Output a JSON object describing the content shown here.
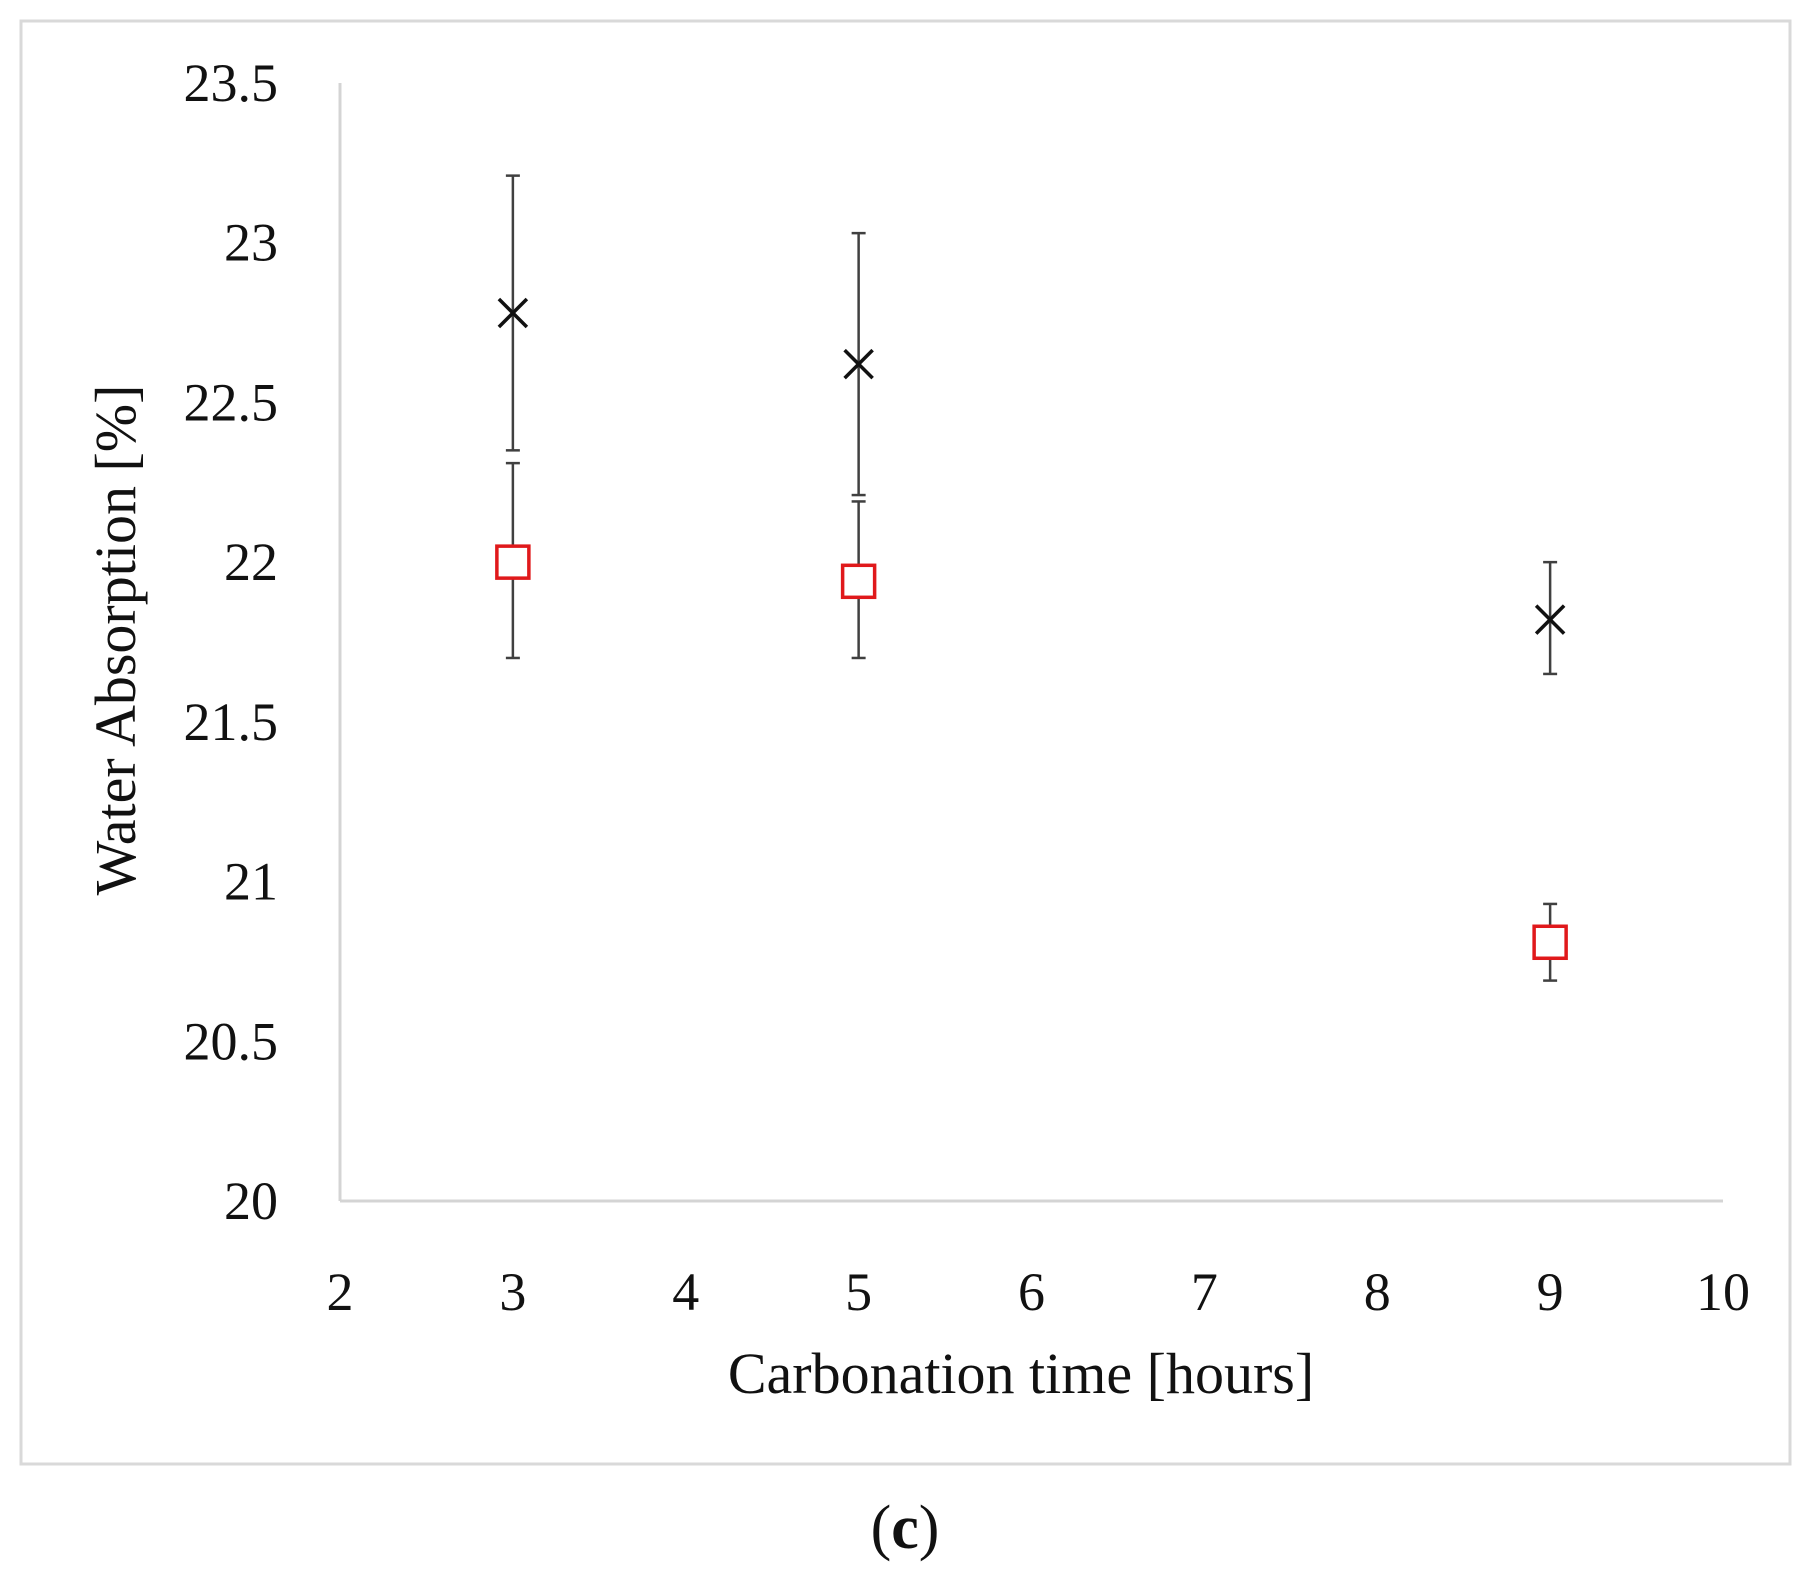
{
  "chart_data": {
    "type": "scatter",
    "title": "",
    "xlabel": "Carbonation  time [hours]",
    "ylabel": "Water Absorption [%]",
    "xlim": [
      2,
      10
    ],
    "ylim": [
      20,
      23.5
    ],
    "x_ticks": [
      2,
      3,
      4,
      5,
      6,
      7,
      8,
      9,
      10
    ],
    "x_tick_labels": [
      "2",
      "3",
      "4",
      "5",
      "6",
      "7",
      "8",
      "9",
      "10"
    ],
    "y_ticks": [
      20,
      20.5,
      21,
      21.5,
      22,
      22.5,
      23,
      23.5
    ],
    "y_tick_labels": [
      "20",
      "20.5",
      "21",
      "21.5",
      "22",
      "22.5",
      "23",
      "23.5"
    ],
    "grid": false,
    "series": [
      {
        "name": "cross",
        "marker": "x",
        "color": "#111111",
        "points": [
          {
            "x": 3,
            "y": 22.78,
            "err_low": 22.35,
            "err_high": 23.21
          },
          {
            "x": 5,
            "y": 22.62,
            "err_low": 22.21,
            "err_high": 23.03
          },
          {
            "x": 9,
            "y": 21.82,
            "err_low": 21.65,
            "err_high": 22.0
          }
        ]
      },
      {
        "name": "square",
        "marker": "square",
        "color": "#e0191b",
        "points": [
          {
            "x": 3,
            "y": 22.0,
            "err_low": 21.7,
            "err_high": 22.31
          },
          {
            "x": 5,
            "y": 21.94,
            "err_low": 21.7,
            "err_high": 22.19
          },
          {
            "x": 9,
            "y": 20.81,
            "err_low": 20.69,
            "err_high": 20.93
          }
        ]
      }
    ]
  },
  "panel_label": {
    "open": "(",
    "letter": "c",
    "close": ")"
  }
}
